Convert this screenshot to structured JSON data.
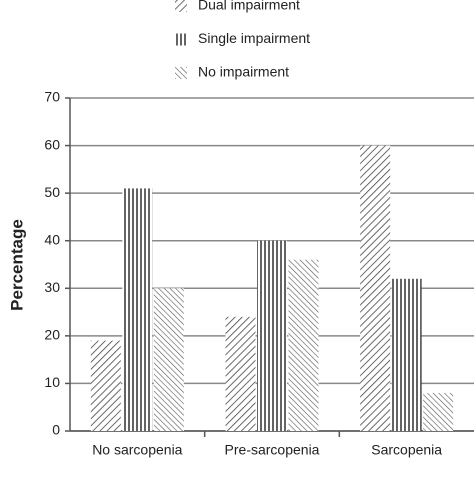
{
  "chart_data": {
    "type": "bar",
    "y_label": "Percentage",
    "categories": [
      "No sarcopenia",
      "Pre-sarcopenia",
      "Sarcopenia"
    ],
    "series": [
      {
        "name": "Dual impairment",
        "color": "#444444",
        "pattern": "diagonal-up",
        "values": [
          19,
          24,
          60
        ]
      },
      {
        "name": "Single impairment",
        "color": "#222222",
        "pattern": "vertical",
        "values": [
          51,
          40,
          32
        ]
      },
      {
        "name": "No impairment",
        "color": "#555555",
        "pattern": "diagonal-down",
        "values": [
          30,
          36,
          8
        ]
      }
    ],
    "ylim": [
      0,
      70
    ],
    "yticks": [
      0,
      10,
      20,
      30,
      40,
      50,
      60,
      70
    ],
    "grid": true,
    "legend": "top"
  }
}
